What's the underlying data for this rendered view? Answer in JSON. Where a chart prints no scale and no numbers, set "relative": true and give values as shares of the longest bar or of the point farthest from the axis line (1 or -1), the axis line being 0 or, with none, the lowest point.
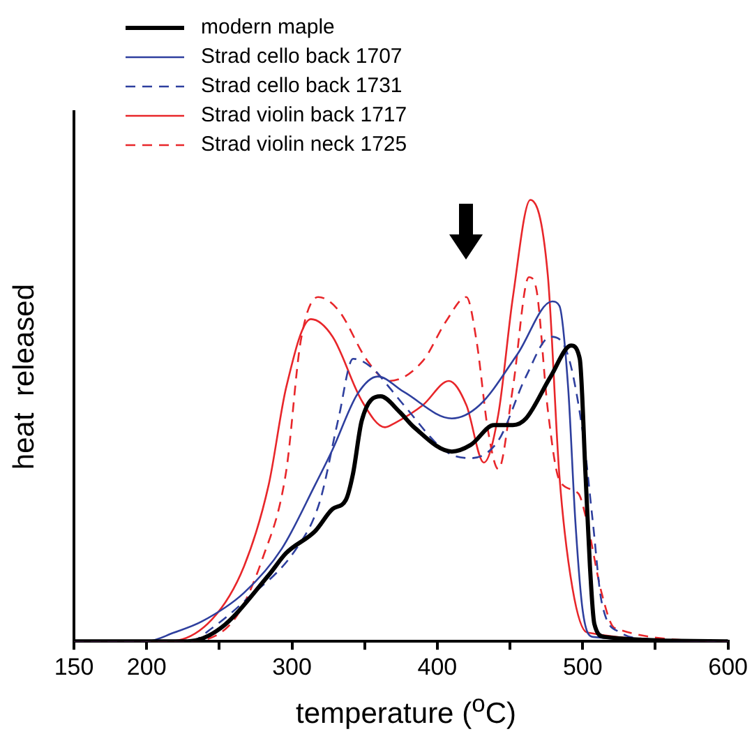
{
  "chart_data": {
    "type": "line",
    "relative": true,
    "xlabel": "temperature ($^{o}$C)",
    "ylabel": "heat  released",
    "xlim": [
      150,
      600
    ],
    "xticks": [
      150,
      200,
      {
        "value": 250,
        "label": null
      },
      300,
      {
        "value": 350,
        "label": null
      },
      400,
      {
        "value": 450,
        "label": null
      },
      500,
      {
        "value": 550,
        "label": null
      },
      600
    ],
    "grid": false,
    "legend": "top left",
    "marker": "none",
    "series": [
      {
        "name": "modern maple",
        "color": "#000000",
        "line_style": "solid",
        "x": [
          150,
          228,
          251,
          284,
          296,
          316,
          328,
          337,
          342,
          348,
          361,
          374,
          384,
          410,
          423,
          439,
          452,
          461,
          478,
          492,
          498,
          502,
          505,
          508,
          515,
          600
        ],
        "values": [
          0,
          0,
          0.03,
          0.15,
          0.2,
          0.25,
          0.3,
          0.32,
          0.38,
          0.5,
          0.555,
          0.52,
          0.485,
          0.43,
          0.445,
          0.49,
          0.49,
          0.505,
          0.6,
          0.67,
          0.64,
          0.375,
          0.17,
          0.04,
          0.01,
          0
        ]
      },
      {
        "name": "Strad cello back 1707",
        "color": "#2e3f9e",
        "line_style": "solid",
        "x": [
          150,
          200,
          219,
          238,
          267,
          293,
          316,
          328,
          345,
          359,
          377,
          410,
          429,
          455,
          479,
          484,
          490,
          495,
          500,
          507,
          600
        ],
        "values": [
          0,
          0,
          0.02,
          0.045,
          0.11,
          0.21,
          0.355,
          0.435,
          0.56,
          0.6,
          0.565,
          0.505,
          0.535,
          0.65,
          0.77,
          0.76,
          0.575,
          0.27,
          0.07,
          0.01,
          0
        ]
      },
      {
        "name": "Strad cello back 1731",
        "color": "#2e3f9e",
        "line_style": "dashed",
        "x": [
          150,
          230,
          245,
          267,
          303,
          319,
          332,
          342,
          355,
          367,
          377,
          406,
          423,
          442,
          461,
          478,
          488,
          500,
          507,
          513,
          526,
          546,
          600
        ],
        "values": [
          0,
          0,
          0.03,
          0.09,
          0.21,
          0.315,
          0.505,
          0.64,
          0.62,
          0.575,
          0.535,
          0.43,
          0.415,
          0.455,
          0.6,
          0.69,
          0.665,
          0.475,
          0.27,
          0.09,
          0.02,
          0.005,
          0
        ]
      },
      {
        "name": "Strad violin back 1717",
        "color": "#e8262a",
        "line_style": "solid",
        "x": [
          150,
          215,
          245,
          267,
          284,
          296,
          313,
          328,
          348,
          364,
          371,
          390,
          408,
          420,
          432,
          442,
          452,
          464,
          476,
          484,
          493,
          503,
          600
        ],
        "values": [
          0,
          0,
          0.05,
          0.17,
          0.355,
          0.575,
          0.73,
          0.69,
          0.545,
          0.485,
          0.495,
          0.535,
          0.59,
          0.535,
          0.405,
          0.515,
          0.78,
          1,
          0.83,
          0.375,
          0.12,
          0.02,
          0
        ]
      },
      {
        "name": "Strad violin neck 1725",
        "color": "#e8262a",
        "line_style": "dashed",
        "x": [
          150,
          225,
          258,
          280,
          296,
          306,
          318,
          332,
          352,
          367,
          390,
          406,
          420,
          427,
          435,
          442,
          452,
          463,
          468,
          476,
          484,
          497,
          503,
          513,
          522,
          600
        ],
        "values": [
          0,
          0,
          0.04,
          0.19,
          0.385,
          0.68,
          0.78,
          0.75,
          0.635,
          0.59,
          0.635,
          0.725,
          0.78,
          0.68,
          0.475,
          0.39,
          0.575,
          0.825,
          0.8,
          0.525,
          0.365,
          0.335,
          0.27,
          0.11,
          0.03,
          0
        ]
      }
    ]
  }
}
